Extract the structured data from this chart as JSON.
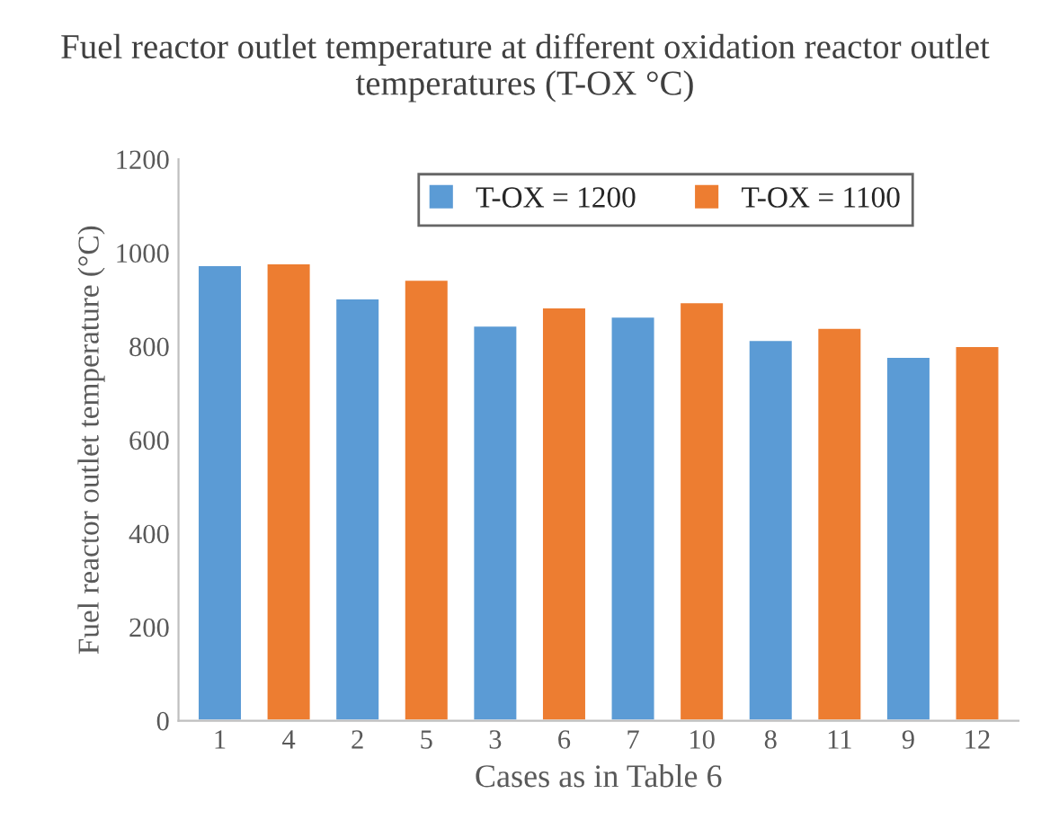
{
  "chart_data": {
    "type": "bar",
    "title": "Fuel reactor outlet temperature at different oxidation reactor outlet temperatures (T-OX °C)",
    "xlabel": "Cases as in Table 6",
    "ylabel": "Fuel reactor outlet temperature (°C)",
    "categories": [
      "1",
      "4",
      "2",
      "5",
      "3",
      "6",
      "7",
      "10",
      "8",
      "11",
      "9",
      "12"
    ],
    "series": [
      {
        "name": "T-OX = 1200",
        "color": "#5b9bd5",
        "values": [
          974,
          null,
          903,
          null,
          845,
          null,
          864,
          null,
          814,
          null,
          778,
          null
        ]
      },
      {
        "name": "T-OX = 1100",
        "color": "#ed7d31",
        "values": [
          null,
          978,
          null,
          943,
          null,
          884,
          null,
          895,
          null,
          840,
          null,
          801
        ]
      }
    ],
    "ylim": [
      0,
      1200
    ],
    "yticks": [
      0,
      200,
      400,
      600,
      800,
      1000,
      1200
    ],
    "grid": false,
    "legend": "top"
  }
}
